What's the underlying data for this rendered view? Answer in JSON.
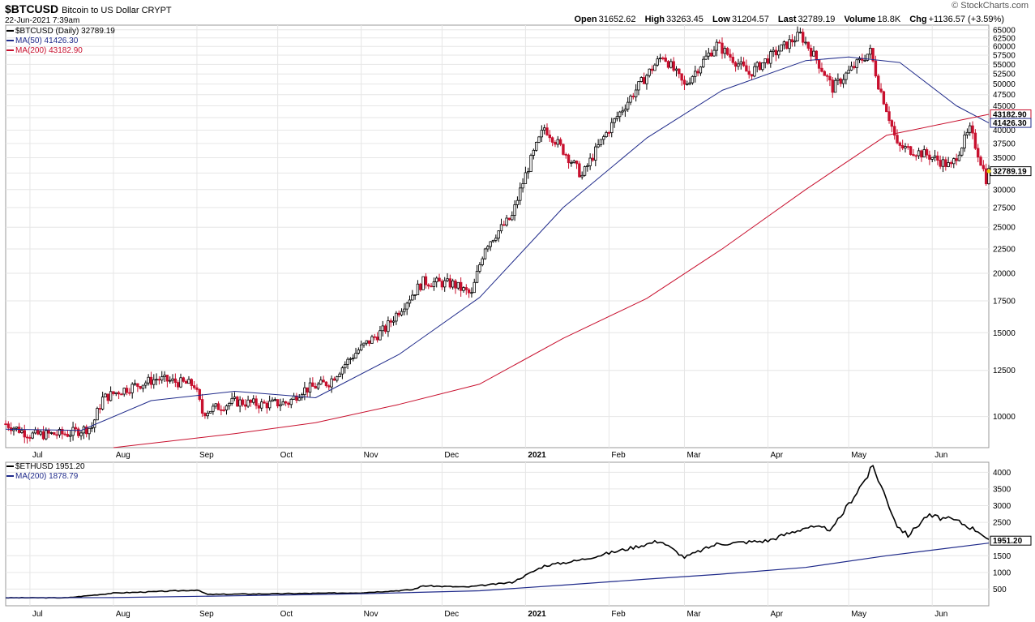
{
  "header": {
    "symbol": "$BTCUSD",
    "description": "Bitcoin to US Dollar",
    "exchange": "CRYPT",
    "timestamp": "22-Jun-2021 7:39am",
    "brand": "© StockCharts.com",
    "open_label": "Open",
    "open": "31652.62",
    "high_label": "High",
    "high": "33263.45",
    "low_label": "Low",
    "low": "31204.57",
    "last_label": "Last",
    "last": "32789.19",
    "volume_label": "Volume",
    "volume": "18.8K",
    "chg_label": "Chg",
    "chg": "+1136.57 (+3.59%)"
  },
  "chart_data": [
    {
      "type": "candlestick",
      "name": "$BTCUSD",
      "y_scale": "log",
      "ylim": [
        8600,
        66500
      ],
      "ticks": [
        10000,
        12500,
        15000,
        17500,
        20000,
        22500,
        25000,
        27500,
        30000,
        32500,
        35000,
        37500,
        40000,
        42500,
        45000,
        47500,
        50000,
        52500,
        55000,
        57500,
        60000,
        62500,
        65000
      ],
      "x_labels": [
        {
          "date": "2020-07-01",
          "label": "Jul"
        },
        {
          "date": "2020-08-01",
          "label": "Aug"
        },
        {
          "date": "2020-09-01",
          "label": "Sep"
        },
        {
          "date": "2020-10-01",
          "label": "Oct"
        },
        {
          "date": "2020-11-01",
          "label": "Nov"
        },
        {
          "date": "2020-12-01",
          "label": "Dec"
        },
        {
          "date": "2021-01-01",
          "label": "2021"
        },
        {
          "date": "2021-02-01",
          "label": "Feb"
        },
        {
          "date": "2021-03-01",
          "label": "Mar"
        },
        {
          "date": "2021-04-01",
          "label": "Apr"
        },
        {
          "date": "2021-05-01",
          "label": "May"
        },
        {
          "date": "2021-06-01",
          "label": "Jun"
        }
      ],
      "price_close_points": [
        [
          "2020-06-22",
          9650
        ],
        [
          "2020-07-01",
          9150
        ],
        [
          "2020-07-15",
          9200
        ],
        [
          "2020-07-24",
          9500
        ],
        [
          "2020-07-28",
          10900
        ],
        [
          "2020-08-03",
          11300
        ],
        [
          "2020-08-17",
          12000
        ],
        [
          "2020-08-31",
          11650
        ],
        [
          "2020-09-03",
          10200
        ],
        [
          "2020-09-15",
          10750
        ],
        [
          "2020-09-25",
          10600
        ],
        [
          "2020-10-05",
          10700
        ],
        [
          "2020-10-10",
          11350
        ],
        [
          "2020-10-20",
          11800
        ],
        [
          "2020-10-31",
          13800
        ],
        [
          "2020-11-10",
          15300
        ],
        [
          "2020-11-24",
          19200
        ],
        [
          "2020-12-05",
          19000
        ],
        [
          "2020-12-12",
          18000
        ],
        [
          "2020-12-17",
          22800
        ],
        [
          "2020-12-27",
          26300
        ],
        [
          "2021-01-08",
          40500
        ],
        [
          "2021-01-22",
          32000
        ],
        [
          "2021-02-08",
          46000
        ],
        [
          "2021-02-21",
          57500
        ],
        [
          "2021-03-01",
          49500
        ],
        [
          "2021-03-13",
          60500
        ],
        [
          "2021-03-25",
          52500
        ],
        [
          "2021-04-13",
          63500
        ],
        [
          "2021-04-25",
          49000
        ],
        [
          "2021-05-09",
          58500
        ],
        [
          "2021-05-12",
          50000
        ],
        [
          "2021-05-19",
          37000
        ],
        [
          "2021-05-30",
          35500
        ],
        [
          "2021-06-08",
          33500
        ],
        [
          "2021-06-15",
          40000
        ],
        [
          "2021-06-21",
          31600
        ],
        [
          "2021-06-22",
          32789
        ]
      ],
      "ma50_points": [
        [
          "2020-06-22",
          9400
        ],
        [
          "2020-07-20",
          9350
        ],
        [
          "2020-08-15",
          10800
        ],
        [
          "2020-09-15",
          11300
        ],
        [
          "2020-10-15",
          10950
        ],
        [
          "2020-11-15",
          13500
        ],
        [
          "2020-12-15",
          17800
        ],
        [
          "2021-01-15",
          27500
        ],
        [
          "2021-02-15",
          38500
        ],
        [
          "2021-03-15",
          48500
        ],
        [
          "2021-04-15",
          56000
        ],
        [
          "2021-05-01",
          57000
        ],
        [
          "2021-05-20",
          55500
        ],
        [
          "2021-06-10",
          45000
        ],
        [
          "2021-06-22",
          41426
        ]
      ],
      "ma200_points": [
        [
          "2020-08-01",
          8600
        ],
        [
          "2020-09-15",
          9200
        ],
        [
          "2020-10-15",
          9700
        ],
        [
          "2020-11-15",
          10600
        ],
        [
          "2020-12-15",
          11700
        ],
        [
          "2021-01-15",
          14600
        ],
        [
          "2021-02-15",
          17700
        ],
        [
          "2021-03-15",
          22500
        ],
        [
          "2021-04-15",
          30000
        ],
        [
          "2021-05-15",
          39000
        ],
        [
          "2021-06-22",
          43183
        ]
      ],
      "legend": [
        {
          "text": "$BTCUSD (Daily) 32789.19",
          "color": "#000000"
        },
        {
          "text": "MA(50) 41426.30",
          "color": "#1f2a8a"
        },
        {
          "text": "MA(200) 43182.90",
          "color": "#c8102e"
        }
      ],
      "last_labels": {
        "ma200": "43182.90",
        "ma50": "41426.30",
        "price": "32789.19"
      }
    },
    {
      "type": "line",
      "name": "$ETHUSD",
      "y_scale": "linear",
      "ylim": [
        0,
        4300
      ],
      "ticks": [
        500,
        1000,
        1500,
        2000,
        2500,
        3000,
        3500,
        4000
      ],
      "series": [
        {
          "name": "$ETHUSD",
          "color": "#000000",
          "points": [
            [
              "2020-06-22",
              240
            ],
            [
              "2020-07-15",
              240
            ],
            [
              "2020-08-01",
              380
            ],
            [
              "2020-08-15",
              420
            ],
            [
              "2020-09-01",
              470
            ],
            [
              "2020-09-05",
              340
            ],
            [
              "2020-10-01",
              360
            ],
            [
              "2020-11-01",
              390
            ],
            [
              "2020-11-20",
              480
            ],
            [
              "2020-11-24",
              600
            ],
            [
              "2020-12-10",
              560
            ],
            [
              "2020-12-27",
              700
            ],
            [
              "2021-01-08",
              1200
            ],
            [
              "2021-01-20",
              1350
            ],
            [
              "2021-02-10",
              1750
            ],
            [
              "2021-02-20",
              1950
            ],
            [
              "2021-03-01",
              1450
            ],
            [
              "2021-03-13",
              1850
            ],
            [
              "2021-04-01",
              1950
            ],
            [
              "2021-04-15",
              2350
            ],
            [
              "2021-04-25",
              2300
            ],
            [
              "2021-05-03",
              3300
            ],
            [
              "2021-05-10",
              4150
            ],
            [
              "2021-05-12",
              3800
            ],
            [
              "2021-05-19",
              2400
            ],
            [
              "2021-05-23",
              2100
            ],
            [
              "2021-05-30",
              2700
            ],
            [
              "2021-06-10",
              2550
            ],
            [
              "2021-06-19",
              2200
            ],
            [
              "2021-06-22",
              1951
            ]
          ]
        },
        {
          "name": "MA(200)",
          "color": "#1f2a8a",
          "points": [
            [
              "2020-06-22",
              240
            ],
            [
              "2020-08-01",
              245
            ],
            [
              "2020-09-15",
              300
            ],
            [
              "2020-11-01",
              360
            ],
            [
              "2020-12-15",
              450
            ],
            [
              "2021-01-15",
              620
            ],
            [
              "2021-02-15",
              800
            ],
            [
              "2021-03-15",
              950
            ],
            [
              "2021-04-15",
              1150
            ],
            [
              "2021-05-15",
              1500
            ],
            [
              "2021-06-22",
              1879
            ]
          ]
        }
      ],
      "legend": [
        {
          "text": "$ETHUSD 1951.20",
          "color": "#000000"
        },
        {
          "text": "MA(200) 1878.79",
          "color": "#1f2a8a"
        }
      ],
      "last_labels": {
        "price": "1951.20"
      }
    }
  ]
}
